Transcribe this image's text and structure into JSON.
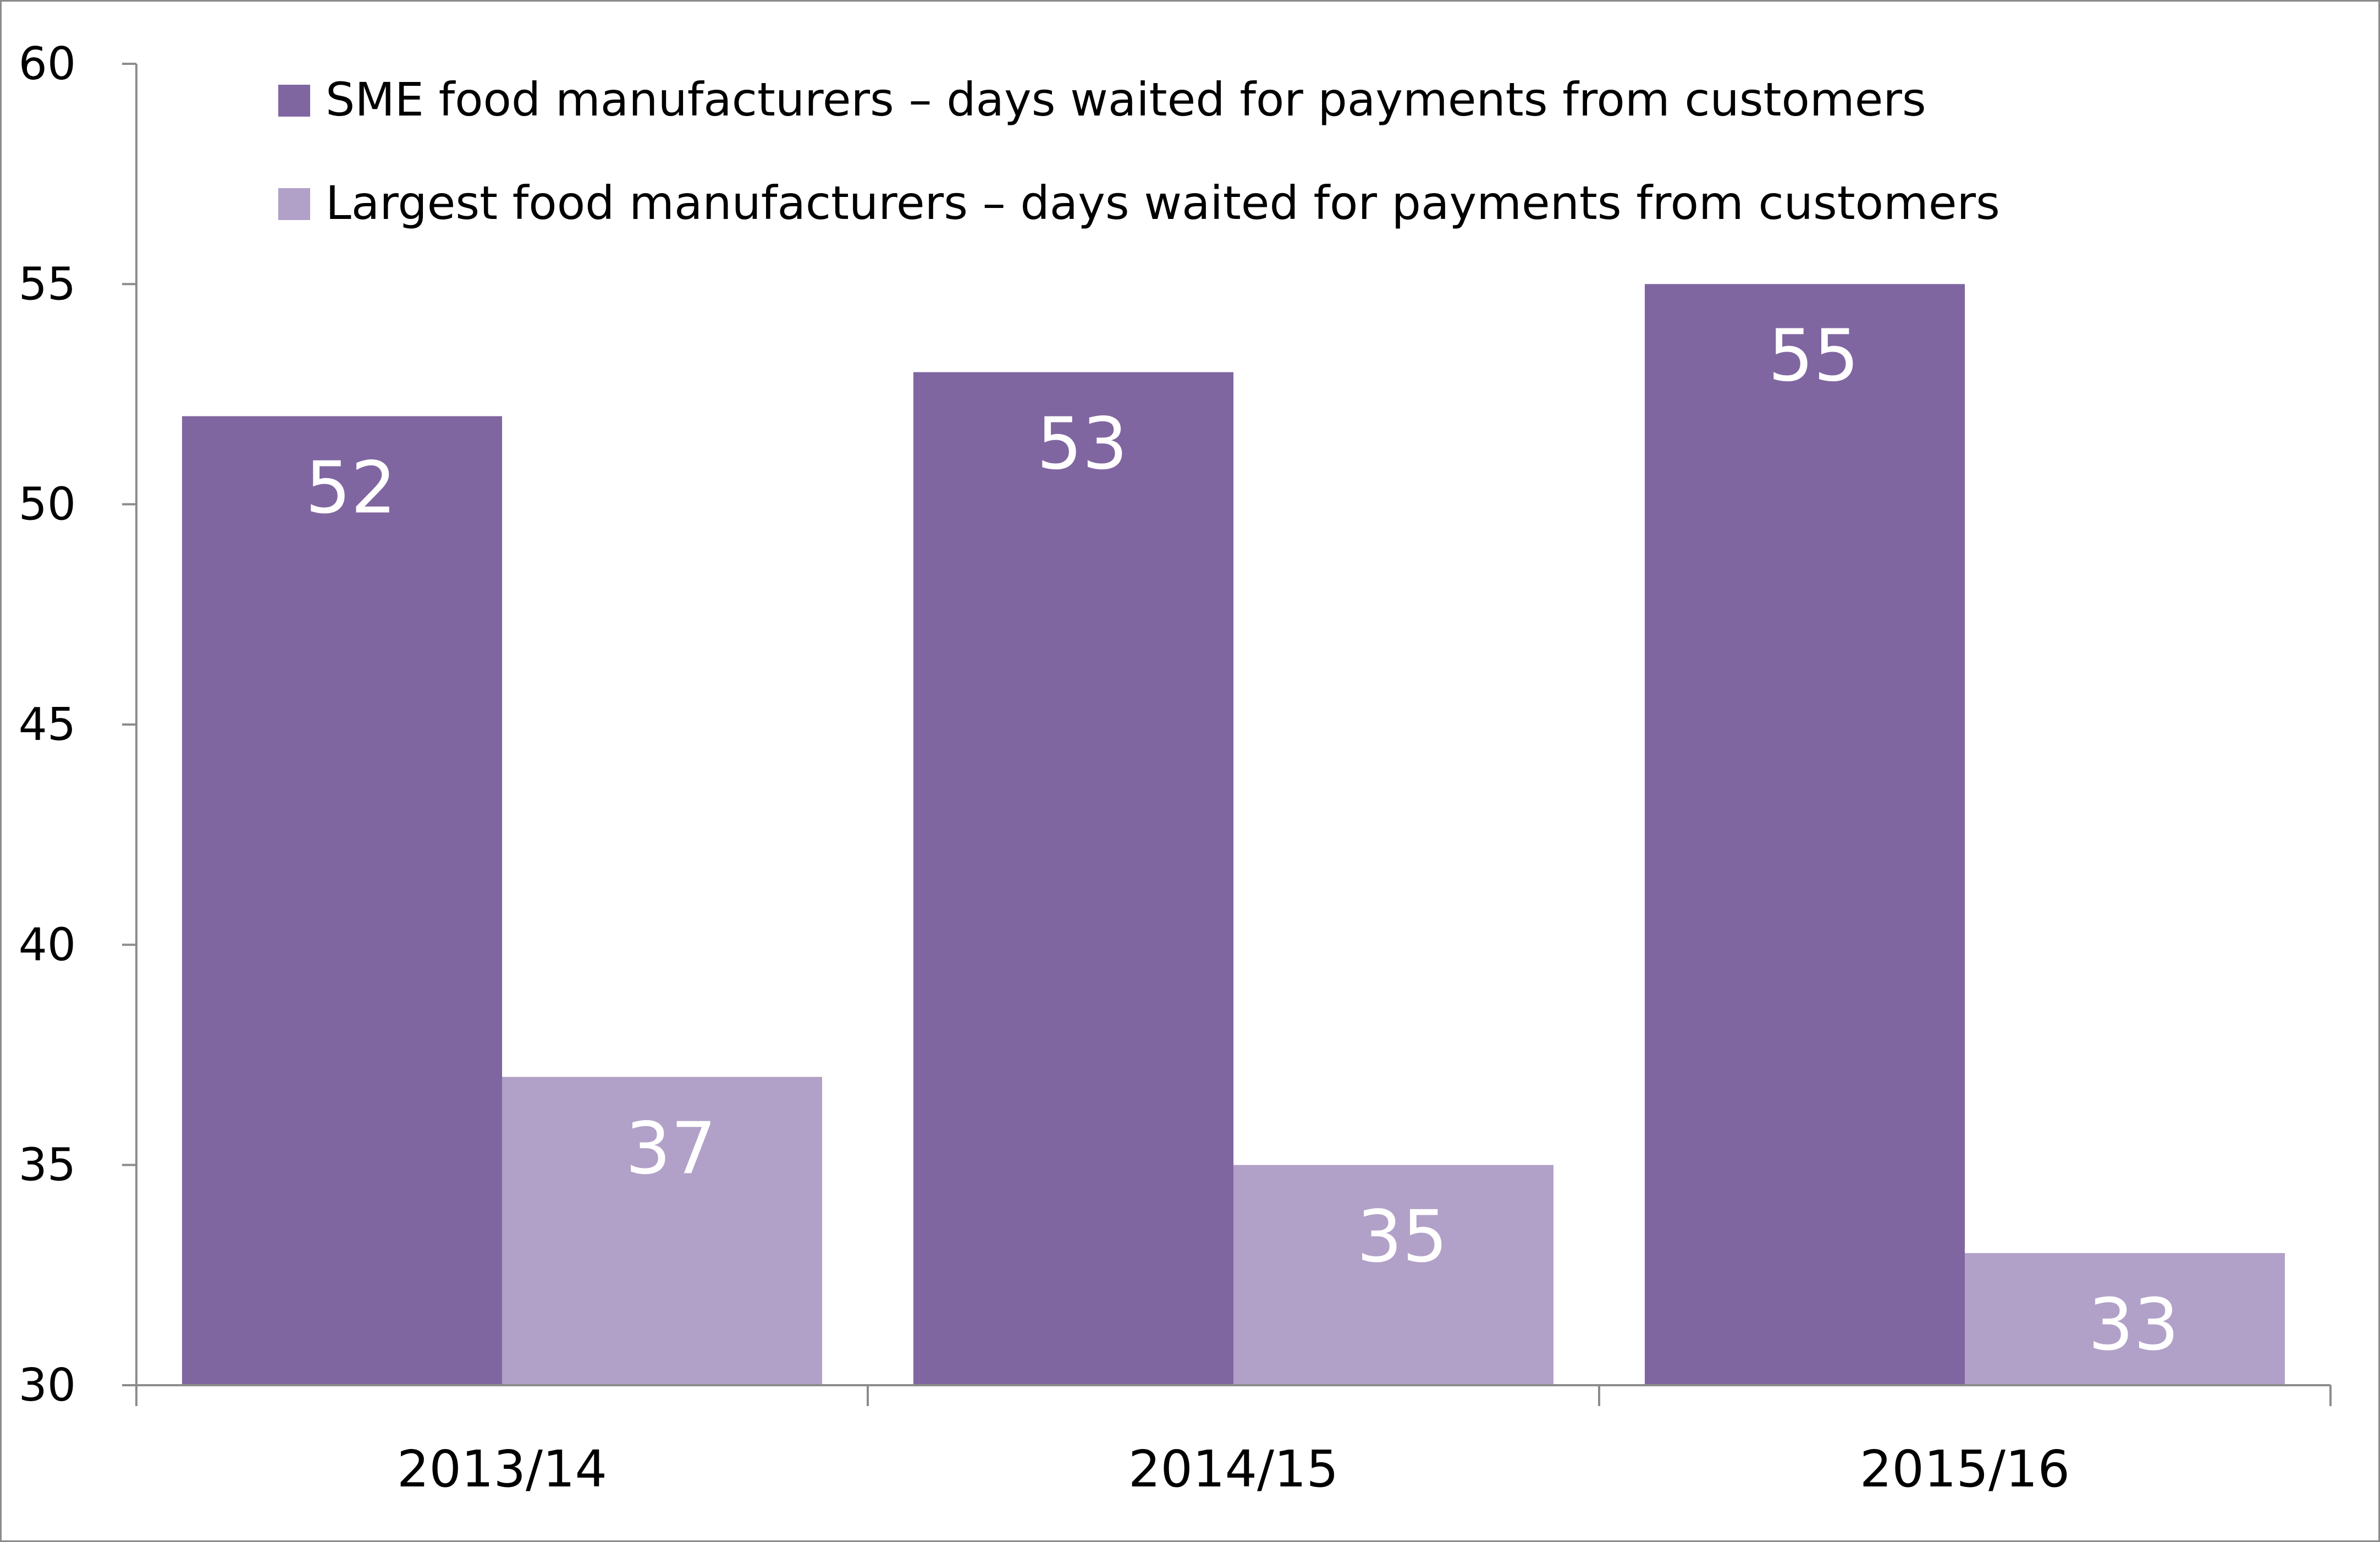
{
  "chart_data": {
    "type": "bar",
    "title": "",
    "xlabel": "",
    "ylabel": "",
    "categories": [
      "2013/14",
      "2014/15",
      "2015/16"
    ],
    "series": [
      {
        "name": "SME food manufacturers – days waited for payments from customers",
        "color": "#8066a1",
        "values": [
          52,
          53,
          55
        ]
      },
      {
        "name": "Largest food manufacturers – days waited for payments from customers",
        "color": "#b1a0c7",
        "values": [
          37,
          35,
          33
        ]
      }
    ],
    "ylim": [
      30,
      60
    ],
    "yticks": [
      30,
      35,
      40,
      45,
      50,
      55,
      60
    ],
    "grid": false,
    "legend_position": "top-left"
  }
}
